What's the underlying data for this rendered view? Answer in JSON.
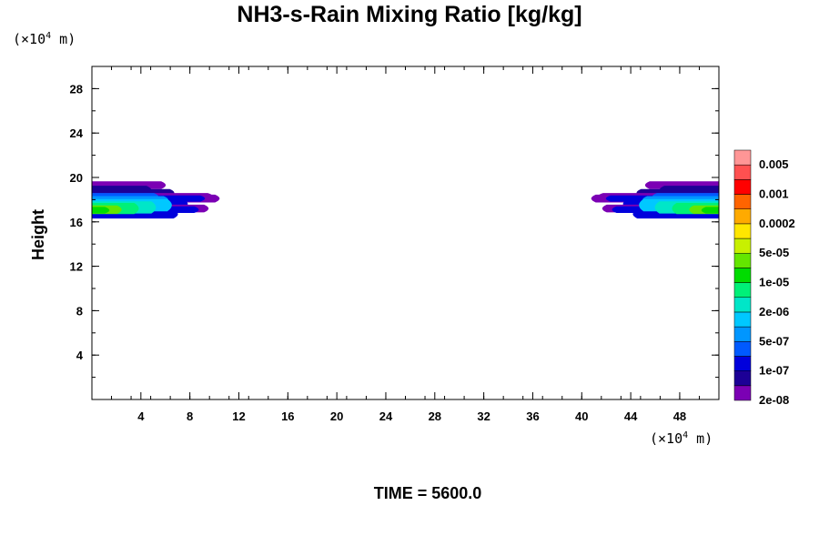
{
  "chart_data": {
    "type": "contour",
    "title": "NH3-s-Rain Mixing Ratio [kg/kg]",
    "ylabel": "Height",
    "x_unit_prefix": "(×10",
    "x_unit_exp": "4",
    "x_unit_suffix": " m)",
    "y_unit_prefix": "(×10",
    "y_unit_exp": "4",
    "y_unit_suffix": " m)",
    "xlim": [
      0,
      51.2
    ],
    "ylim": [
      0,
      30
    ],
    "x_ticks": [
      4,
      8,
      12,
      16,
      20,
      24,
      28,
      32,
      36,
      40,
      44,
      48
    ],
    "y_ticks": [
      4,
      8,
      12,
      16,
      20,
      24,
      28
    ],
    "colorbar": {
      "labels": [
        "0.005",
        "0.001",
        "0.0002",
        "5e-05",
        "1e-05",
        "2e-06",
        "5e-07",
        "1e-07",
        "2e-08"
      ],
      "colors": [
        "#7b00b4",
        "#1c0096",
        "#0000dc",
        "#005aff",
        "#0096ff",
        "#00c8ff",
        "#00e6c8",
        "#00f078",
        "#00dc00",
        "#64e600",
        "#c8f000",
        "#ffe600",
        "#ffaa00",
        "#ff6400",
        "#ff0000",
        "#ff5050",
        "#ff9696"
      ]
    },
    "regions": [
      {
        "name": "left-band",
        "x_extent": [
          0,
          10.8
        ],
        "y_range": [
          16.3,
          19.6
        ]
      },
      {
        "name": "right-band",
        "x_extent": [
          40.3,
          51.2
        ],
        "y_range": [
          16.3,
          19.6
        ]
      }
    ]
  },
  "footer": {
    "time_label": "TIME = 5600.0"
  }
}
